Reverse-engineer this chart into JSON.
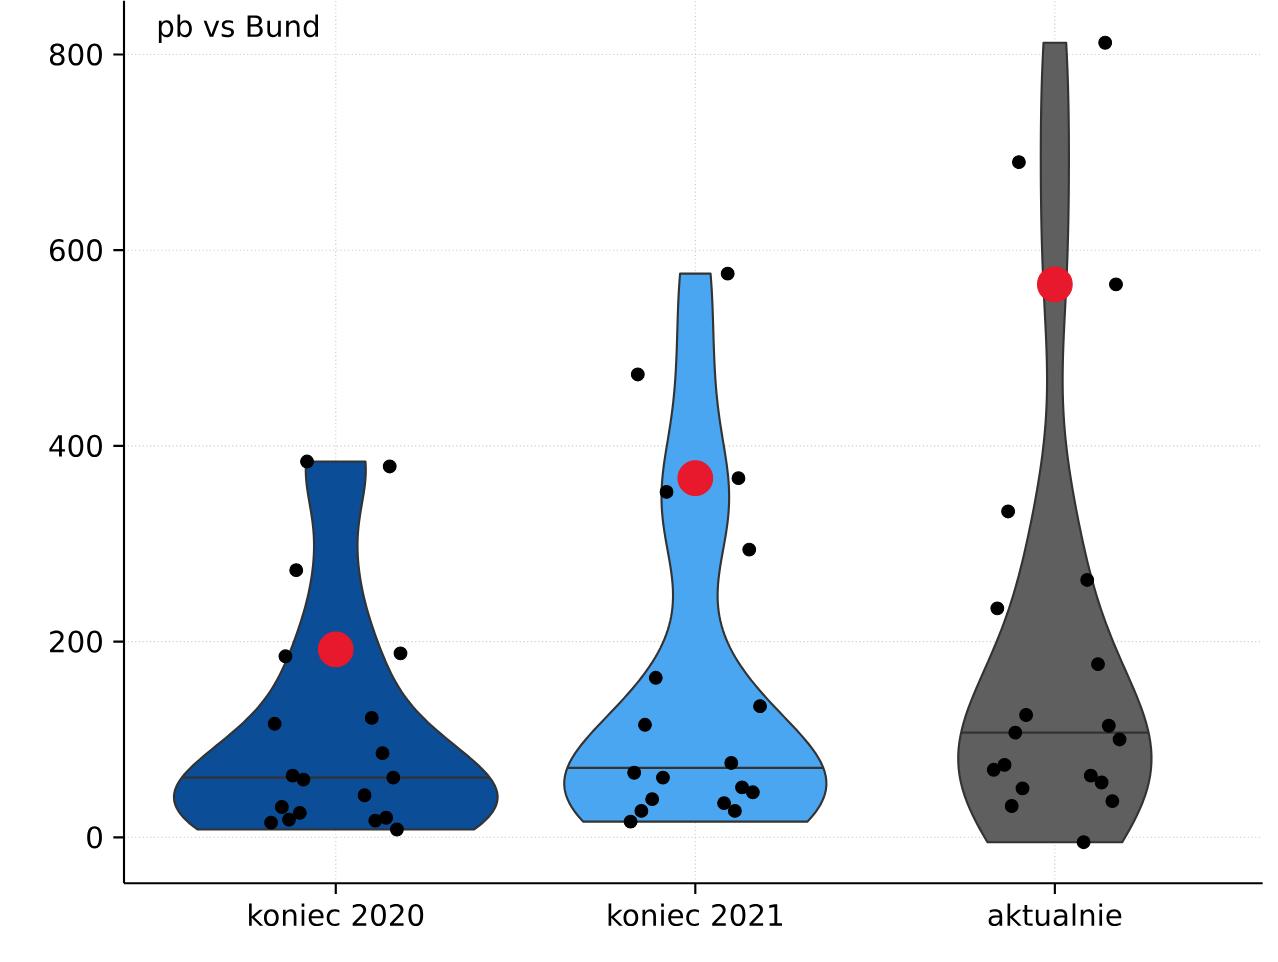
{
  "chart_data": {
    "type": "scatter",
    "title": "pb vs Bund",
    "categories": [
      "koniec 2020",
      "koniec 2021",
      "aktualnie"
    ],
    "colors": [
      "#0b4d96",
      "#4aa6f0",
      "#5f5f5f"
    ],
    "series": [
      {
        "color": "#000000",
        "x": [
          "koniec 2020",
          "koniec 2020",
          "koniec 2020",
          "koniec 2020",
          "koniec 2020",
          "koniec 2020",
          "koniec 2020",
          "koniec 2020",
          "koniec 2020",
          "koniec 2020",
          "koniec 2020",
          "koniec 2020",
          "koniec 2020",
          "koniec 2020",
          "koniec 2020",
          "koniec 2020",
          "koniec 2020",
          "koniec 2020",
          "koniec 2020",
          "koniec 2021",
          "koniec 2021",
          "koniec 2021",
          "koniec 2021",
          "koniec 2021",
          "koniec 2021",
          "koniec 2021",
          "koniec 2021",
          "koniec 2021",
          "koniec 2021",
          "koniec 2021",
          "koniec 2021",
          "koniec 2021",
          "koniec 2021",
          "koniec 2021",
          "koniec 2021",
          "koniec 2021",
          "koniec 2021",
          "aktualnie",
          "aktualnie",
          "aktualnie",
          "aktualnie",
          "aktualnie",
          "aktualnie",
          "aktualnie",
          "aktualnie",
          "aktualnie",
          "aktualnie",
          "aktualnie",
          "aktualnie",
          "aktualnie",
          "aktualnie",
          "aktualnie",
          "aktualnie",
          "aktualnie",
          "aktualnie",
          "aktualnie"
        ],
        "values": [
          384,
          379,
          273,
          188,
          185,
          122,
          116,
          86,
          59,
          61,
          63,
          43,
          31,
          17,
          15,
          20,
          25,
          8,
          18,
          576,
          473,
          367,
          353,
          294,
          163,
          134,
          115,
          76,
          66,
          51,
          61,
          46,
          39,
          35,
          27,
          27,
          16,
          812,
          690,
          565,
          333,
          263,
          234,
          177,
          125,
          114,
          107,
          100,
          74,
          63,
          69,
          56,
          50,
          37,
          32,
          -5
        ]
      },
      {
        "color": "#e8192c",
        "x": [
          "koniec 2020",
          "koniec 2021",
          "aktualnie"
        ],
        "values": [
          192,
          367,
          565
        ]
      }
    ],
    "ylim": [
      -47,
      855
    ],
    "yticks": [
      0,
      200,
      400,
      600,
      800
    ],
    "grid": true,
    "marker": "circle"
  }
}
